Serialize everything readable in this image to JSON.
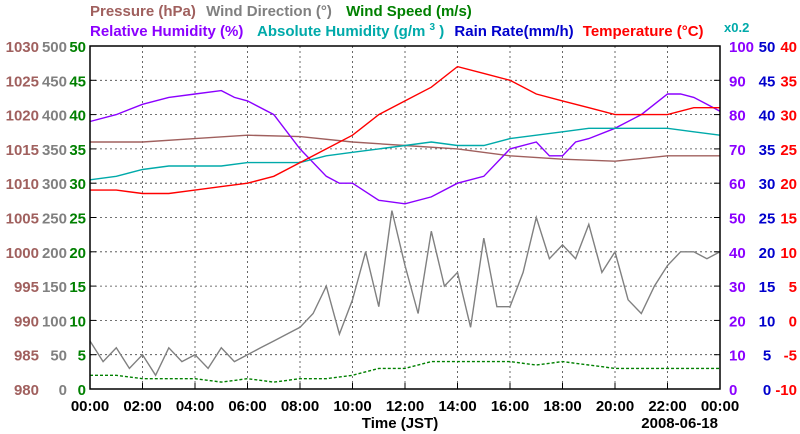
{
  "chart_data": {
    "type": "line",
    "date_label": "2008-06-18",
    "xlabel": "Time (JST)",
    "x_ticks": [
      "00:00",
      "02:00",
      "04:00",
      "06:00",
      "08:00",
      "10:00",
      "12:00",
      "14:00",
      "16:00",
      "18:00",
      "20:00",
      "22:00",
      "00:00"
    ],
    "xlim_hours": [
      0,
      24
    ],
    "grid": true,
    "legend": {
      "row1": [
        {
          "label": "Pressure (hPa)",
          "color": "#a0605e"
        },
        {
          "label": "Wind Direction (°)",
          "color": "#808080"
        },
        {
          "label": "Wind Speed (m/s)",
          "color": "#008000"
        }
      ],
      "row2": [
        {
          "label": "Relative Humidity (%)",
          "color": "#8b00ff"
        },
        {
          "label": "Absolute Humidity (g/m",
          "sup": "3",
          "label_end": ")",
          "color": "#00aaaa"
        },
        {
          "label": "Rain Rate(mm/h)",
          "color": "#0000cc"
        },
        {
          "label": "Temperature (°C)",
          "color": "#ff0000"
        }
      ],
      "scale_note": {
        "label": "x0.2",
        "color": "#00aaaa"
      }
    },
    "axes": {
      "pressure": {
        "label": "Pressure (hPa)",
        "color": "#a0605e",
        "ticks": [
          "1030",
          "1025",
          "1020",
          "1015",
          "1010",
          "1005",
          "1000",
          "995",
          "990",
          "985",
          "980"
        ],
        "range": [
          980,
          1030
        ]
      },
      "wind_direction": {
        "label": "Wind Direction (°)",
        "color": "#808080",
        "ticks": [
          "500",
          "450",
          "400",
          "350",
          "300",
          "250",
          "200",
          "150",
          "100",
          "50",
          "0"
        ],
        "range": [
          0,
          500
        ]
      },
      "wind_speed": {
        "label": "Wind Speed (m/s)",
        "color": "#008000",
        "ticks": [
          "50",
          "45",
          "40",
          "35",
          "30",
          "25",
          "20",
          "15",
          "10",
          "5",
          "0"
        ],
        "range": [
          0,
          50
        ]
      },
      "relative_humidity": {
        "label": "Relative Humidity (%)",
        "color": "#8b00ff",
        "ticks": [
          "100",
          "90",
          "80",
          "70",
          "60",
          "50",
          "40",
          "30",
          "20",
          "10",
          "0"
        ],
        "range": [
          0,
          100
        ]
      },
      "rain_rate": {
        "label": "Rain Rate(mm/h)",
        "color": "#0000cc",
        "ticks": [
          "50",
          "45",
          "40",
          "35",
          "30",
          "25",
          "20",
          "15",
          "10",
          "5",
          "0"
        ],
        "range": [
          0,
          50
        ]
      },
      "temperature": {
        "label": "Temperature (°C)",
        "color": "#ff0000",
        "ticks": [
          "40",
          "35",
          "30",
          "25",
          "20",
          "15",
          "10",
          "5",
          "0",
          "-5",
          "-10"
        ],
        "range": [
          -10,
          40
        ]
      }
    },
    "series": [
      {
        "name": "Pressure (hPa)",
        "color": "#a0605e",
        "axis": "pressure",
        "x": [
          0,
          2,
          4,
          6,
          8,
          10,
          12,
          14,
          16,
          18,
          20,
          22,
          24
        ],
        "values": [
          1016,
          1016,
          1016.5,
          1017,
          1016.8,
          1016,
          1015.5,
          1015,
          1014,
          1013.5,
          1013.2,
          1014,
          1014
        ]
      },
      {
        "name": "Wind Direction (°)",
        "color": "#808080",
        "axis": "wind_direction",
        "x": [
          0,
          0.5,
          1,
          1.5,
          2,
          2.5,
          3,
          3.5,
          4,
          4.5,
          5,
          5.5,
          6,
          6.5,
          7,
          7.5,
          8,
          8.5,
          9,
          9.5,
          10,
          10.5,
          11,
          11.5,
          12,
          12.5,
          13,
          13.5,
          14,
          14.5,
          15,
          15.5,
          16,
          16.5,
          17,
          17.5,
          18,
          18.5,
          19,
          19.5,
          20,
          20.5,
          21,
          21.5,
          22,
          22.5,
          23,
          23.5,
          24
        ],
        "values": [
          70,
          40,
          60,
          30,
          50,
          20,
          60,
          40,
          50,
          30,
          60,
          40,
          50,
          60,
          70,
          80,
          90,
          110,
          150,
          80,
          130,
          200,
          120,
          260,
          180,
          110,
          230,
          150,
          170,
          90,
          220,
          120,
          120,
          170,
          250,
          190,
          210,
          190,
          240,
          170,
          200,
          130,
          110,
          150,
          180,
          200,
          200,
          190,
          200
        ]
      },
      {
        "name": "Wind Speed (m/s)",
        "color": "#008000",
        "axis": "wind_speed",
        "x": [
          0,
          1,
          2,
          3,
          4,
          5,
          6,
          7,
          8,
          9,
          10,
          11,
          12,
          13,
          14,
          15,
          16,
          17,
          18,
          19,
          20,
          21,
          22,
          23,
          24
        ],
        "values": [
          2,
          2,
          1.5,
          1.5,
          1.5,
          1,
          1.5,
          1,
          1.5,
          1.5,
          2,
          3,
          3,
          4,
          4,
          4,
          4,
          3.5,
          4,
          3.5,
          3,
          3,
          3,
          3,
          3
        ]
      },
      {
        "name": "Relative Humidity (%)",
        "color": "#8b00ff",
        "axis": "relative_humidity",
        "x": [
          0,
          1,
          2,
          3,
          4,
          5,
          5.5,
          6,
          7,
          8,
          9,
          9.5,
          10,
          11,
          12,
          13,
          14,
          15,
          16,
          17,
          17.5,
          18,
          18.5,
          19,
          20,
          21,
          22,
          22.5,
          23,
          23.5,
          24
        ],
        "values": [
          78,
          80,
          83,
          85,
          86,
          87,
          85,
          84,
          80,
          70,
          62,
          60,
          60,
          55,
          54,
          56,
          60,
          62,
          70,
          72,
          68,
          68,
          72,
          73,
          76,
          80,
          86,
          86,
          85,
          83,
          81
        ]
      },
      {
        "name": "Absolute Humidity (g/m3)",
        "color": "#00aaaa",
        "axis": "rain_rate",
        "x": [
          0,
          1,
          2,
          3,
          4,
          5,
          6,
          7,
          8,
          9,
          10,
          11,
          12,
          13,
          14,
          15,
          16,
          17,
          18,
          19,
          20,
          21,
          22,
          23,
          24
        ],
        "values": [
          30.5,
          31,
          32,
          32.5,
          32.5,
          32.5,
          33,
          33,
          33,
          34,
          34.5,
          35,
          35.5,
          36,
          35.5,
          35.5,
          36.5,
          37,
          37.5,
          38,
          38,
          38,
          38,
          37.5,
          37
        ]
      },
      {
        "name": "Temperature (°C)",
        "color": "#ff0000",
        "axis": "temperature",
        "x": [
          0,
          1,
          2,
          3,
          4,
          5,
          6,
          7,
          8,
          9,
          10,
          11,
          12,
          13,
          14,
          15,
          16,
          17,
          18,
          19,
          20,
          21,
          22,
          23,
          24
        ],
        "values": [
          19,
          19,
          18.5,
          18.5,
          19,
          19.5,
          20,
          21,
          23,
          25,
          27,
          30,
          32,
          34,
          37,
          36,
          35,
          33,
          32,
          31,
          30,
          30,
          30,
          31,
          31
        ]
      }
    ]
  }
}
